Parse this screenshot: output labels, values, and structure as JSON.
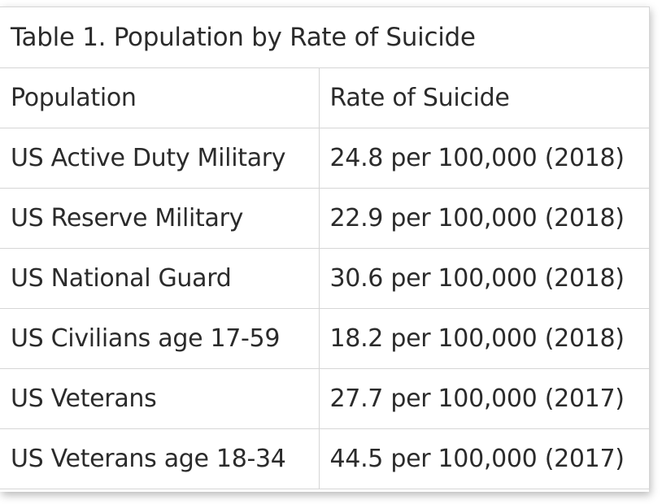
{
  "table": {
    "caption": "Table 1. Population by Rate of Suicide",
    "headers": [
      "Population",
      "Rate of Suicide"
    ],
    "rows": [
      [
        "US Active Duty Military",
        "24.8 per 100,000 (2018)"
      ],
      [
        "US Reserve Military",
        "22.9 per 100,000 (2018)"
      ],
      [
        "US National Guard",
        "30.6 per 100,000 (2018)"
      ],
      [
        "US Civilians age 17-59",
        "18.2 per 100,000 (2018)"
      ],
      [
        "US Veterans",
        "27.7 per 100,000 (2017)"
      ],
      [
        "US Veterans age 18-34",
        "44.5 per 100,000 (2017)"
      ]
    ]
  }
}
